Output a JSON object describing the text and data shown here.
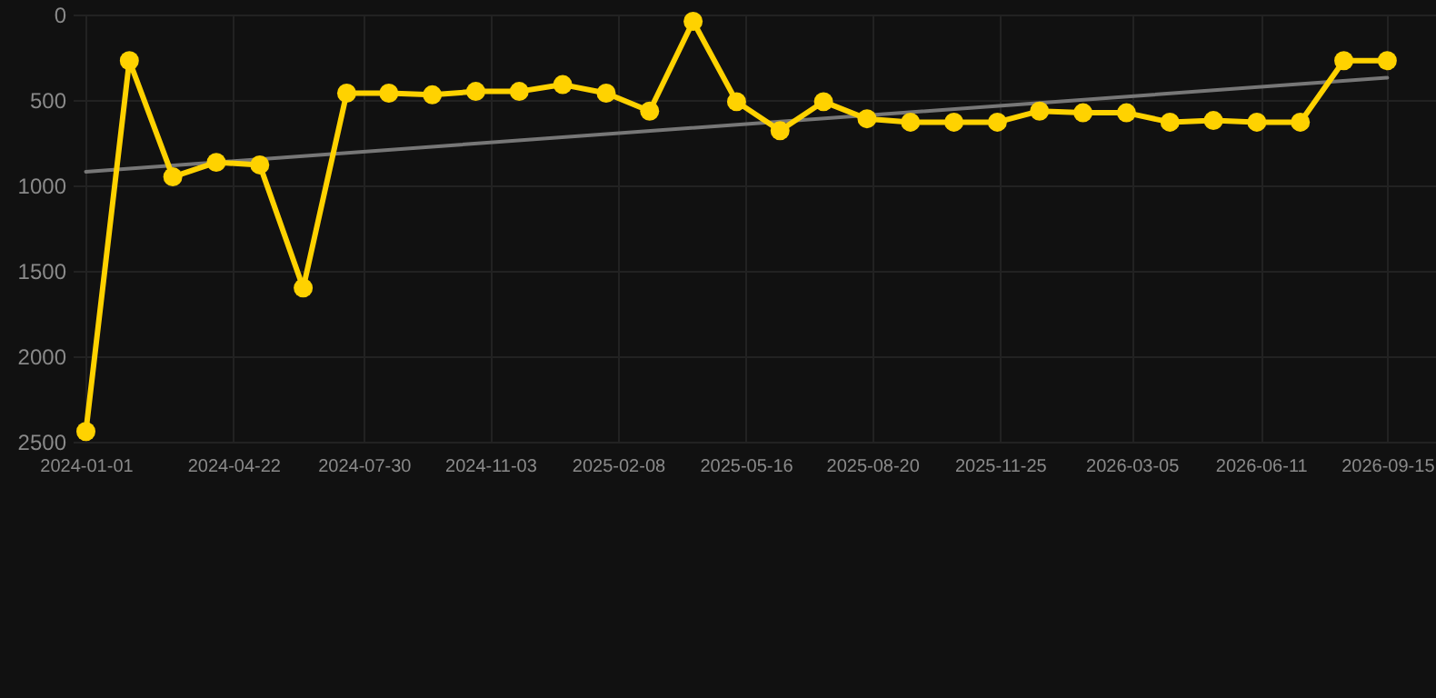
{
  "chart_data": {
    "type": "line",
    "x": [
      "2024-01-01",
      "2024-02-03",
      "2024-03-07",
      "2024-04-09",
      "2024-05-12",
      "2024-06-14",
      "2024-07-17",
      "2024-08-18",
      "2024-09-20",
      "2024-10-23",
      "2024-11-25",
      "2024-12-28",
      "2025-01-30",
      "2025-03-04",
      "2025-04-06",
      "2025-05-09",
      "2025-06-11",
      "2025-07-14",
      "2025-08-16",
      "2025-09-18",
      "2025-10-21",
      "2025-11-23",
      "2025-12-25",
      "2026-01-27",
      "2026-03-01",
      "2026-04-03",
      "2026-05-06",
      "2026-06-08",
      "2026-07-11",
      "2026-08-13",
      "2026-09-15"
    ],
    "series": [
      {
        "color": "#ffd200",
        "marker": "circle",
        "values": [
          2440,
          270,
          950,
          865,
          880,
          1600,
          460,
          460,
          470,
          450,
          450,
          410,
          460,
          565,
          40,
          510,
          680,
          510,
          610,
          630,
          630,
          630,
          565,
          575,
          575,
          630,
          620,
          630,
          630,
          270,
          270
        ]
      },
      {
        "type": "line",
        "color": "#777777",
        "marker": "none",
        "x": [
          "2024-01-01",
          "2026-09-15"
        ],
        "values": [
          920,
          370
        ]
      }
    ],
    "xlim": [
      "2023-12-22",
      "2026-10-22"
    ],
    "xticks": [
      "2024-01-01",
      "2024-04-22",
      "2024-07-30",
      "2024-11-03",
      "2025-02-08",
      "2025-05-16",
      "2025-08-20",
      "2025-11-25",
      "2026-03-05",
      "2026-06-11",
      "2026-09-15"
    ],
    "ylim": [
      2500,
      0
    ],
    "yticks": [
      0,
      500,
      1000,
      1500,
      2000,
      2500
    ],
    "grid": true,
    "line_style": "solid"
  }
}
